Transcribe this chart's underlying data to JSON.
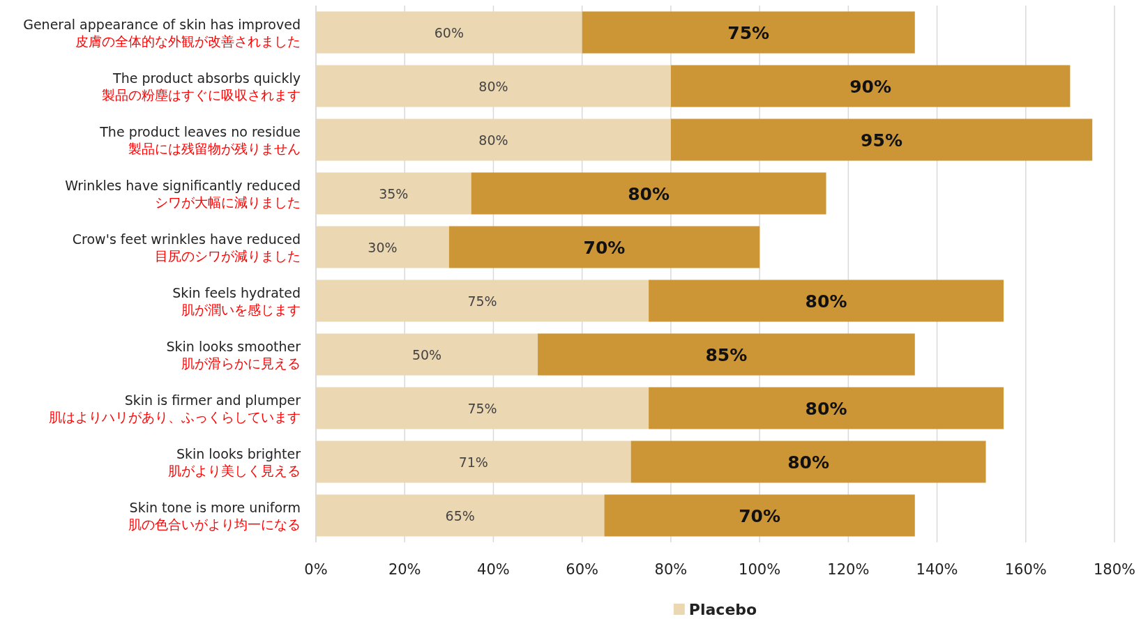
{
  "chart_data": {
    "type": "bar",
    "orientation": "horizontal",
    "stacked": true,
    "categories": [
      "General appearance of skin has improved\n皮膚の全体的な外観が改善されました",
      "The product absorbs quickly\n製品の粉塵はすぐに吸収されます",
      "The product leaves no residue\n製品には残留物が残りません",
      "Wrinkles have significantly reduced\nシワが大幅に減りました",
      "Crow's feet wrinkles have reduced\n目尻のシワが減りました",
      "Skin feels hydrated\n肌が潤いを感じます",
      "Skin looks smoother\n肌が滑らかに見える",
      "Skin is firmer and plumper\n肌はよりハリがあり、ふっくらしています",
      "Skin looks brighter\n肌がより美しく見える",
      "Skin tone is more uniform\n肌の色合いがより均一になる"
    ],
    "series": [
      {
        "name": "Placebo",
        "color": "#ecd7b3",
        "values": [
          60,
          80,
          80,
          35,
          30,
          75,
          50,
          75,
          71,
          65
        ],
        "value_labels": [
          "60%",
          "80%",
          "80%",
          "35%",
          "30%",
          "75%",
          "50%",
          "75%",
          "71%",
          "65%"
        ]
      },
      {
        "color": "#cc9636",
        "values": [
          75,
          90,
          95,
          80,
          70,
          80,
          85,
          80,
          80,
          70
        ],
        "value_labels": [
          "75%",
          "90%",
          "95%",
          "80%",
          "70%",
          "80%",
          "85%",
          "80%",
          "80%",
          "70%"
        ]
      }
    ],
    "xlim": [
      0,
      180
    ],
    "xticks": [
      {
        "value": 0,
        "label": "0%"
      },
      {
        "value": 20,
        "label": "20%"
      },
      {
        "value": 40,
        "label": "40%"
      },
      {
        "value": 60,
        "label": "60%"
      },
      {
        "value": 80,
        "label": "80%"
      },
      {
        "value": 100,
        "label": "100%"
      },
      {
        "value": 120,
        "label": "120%"
      },
      {
        "value": 140,
        "label": "140%"
      },
      {
        "value": 160,
        "label": "160%"
      },
      {
        "value": 180,
        "label": "180%"
      }
    ],
    "grid": "x",
    "legend": "bottom"
  }
}
